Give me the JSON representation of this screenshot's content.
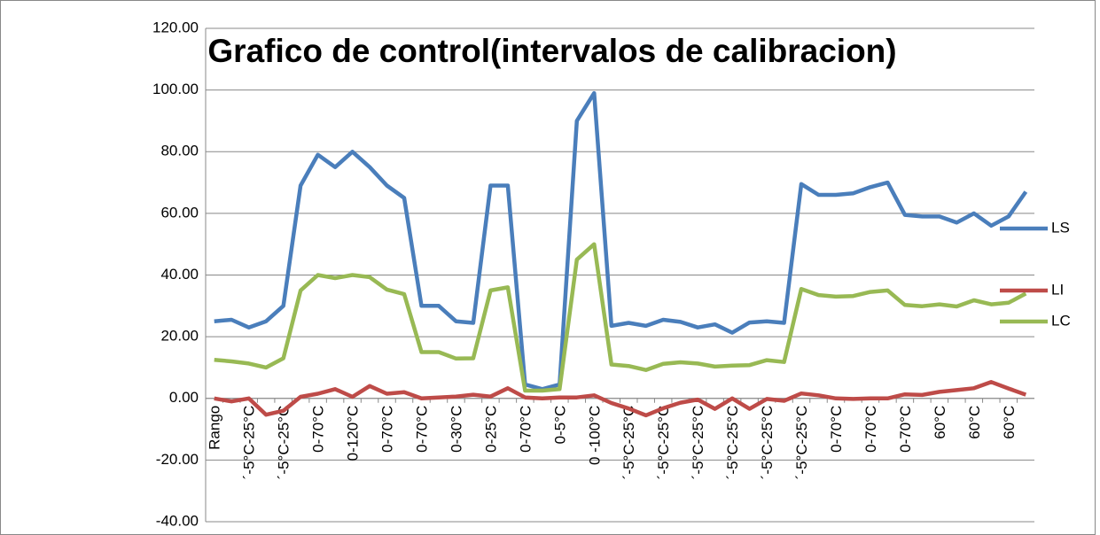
{
  "chart_data": {
    "type": "line",
    "title": "Grafico de control(intervalos de calibracion)",
    "categories": [
      "Rango",
      null,
      "´-5°C-25°C",
      null,
      "´-5°C-25°C",
      null,
      "0-70°C",
      null,
      "0-120°C",
      null,
      "0-70°C",
      null,
      "0-70°C",
      null,
      "0-30°C",
      null,
      "0-25°C",
      null,
      "0-70°C",
      null,
      "0-5°C",
      null,
      "0 -100°C",
      null,
      "´-5°C-25°C",
      null,
      "´-5°C-25°C",
      null,
      "´-5°C-25°C",
      null,
      "´-5°C-25°C",
      null,
      "´-5°C-25°C",
      null,
      "´-5°C-25°C",
      null,
      "0-70°C",
      null,
      "0-70°C",
      null,
      "0-70°C",
      null,
      "60°C",
      null,
      "60°C",
      null,
      "60°C",
      null
    ],
    "series": [
      {
        "name": "LS",
        "color": "#4a7ebb",
        "values": [
          25,
          25.5,
          23,
          25,
          30,
          69,
          79,
          75,
          80,
          75,
          69,
          65,
          30,
          30,
          25,
          24.5,
          69,
          69,
          4.5,
          3,
          4.5,
          90,
          99,
          23.5,
          24.5,
          23.5,
          25.5,
          24.8,
          23,
          24,
          21.3,
          24.6,
          25,
          24.5,
          69.5,
          66,
          66,
          66.5,
          68.5,
          70,
          59.5,
          59,
          59,
          57,
          60,
          56,
          59,
          67
        ]
      },
      {
        "name": "LI",
        "color": "#be4b48",
        "values": [
          0,
          -1,
          0,
          -5.3,
          -4,
          0.5,
          1.5,
          3,
          0.5,
          4,
          1.5,
          2,
          0,
          0.3,
          0.6,
          1.2,
          0.6,
          3.3,
          0.3,
          0,
          0.3,
          0.3,
          1,
          -1.5,
          -3.3,
          -5.5,
          -3.2,
          -1.4,
          -0.4,
          -3.4,
          0,
          -3.4,
          -0.2,
          -0.8,
          1.6,
          1,
          0,
          -0.2,
          0,
          0,
          1.3,
          1.1,
          2.1,
          2.7,
          3.3,
          5.3,
          3.2,
          1.2
        ]
      },
      {
        "name": "LC",
        "color": "#98b954",
        "values": [
          12.5,
          12,
          11.3,
          10,
          13,
          35,
          40,
          39,
          40,
          39.3,
          35.3,
          33.8,
          15,
          15,
          12.9,
          13,
          35,
          36,
          2.5,
          2.5,
          3,
          45,
          50,
          11,
          10.5,
          9.2,
          11.2,
          11.7,
          11.3,
          10.3,
          10.6,
          10.8,
          12.4,
          11.8,
          35.5,
          33.5,
          33,
          33.2,
          34.5,
          35,
          30.3,
          29.9,
          30.5,
          29.8,
          31.8,
          30.5,
          31,
          34
        ]
      }
    ],
    "ylim": [
      -40,
      120
    ],
    "yticks": [
      {
        "value": -40,
        "label": "-40.00"
      },
      {
        "value": -20,
        "label": "-20.00"
      },
      {
        "value": 0,
        "label": "0.00"
      },
      {
        "value": 20,
        "label": "20.00"
      },
      {
        "value": 40,
        "label": "40.00"
      },
      {
        "value": 60,
        "label": "60.00"
      },
      {
        "value": 80,
        "label": "80.00"
      },
      {
        "value": 100,
        "label": "100.00"
      },
      {
        "value": 120,
        "label": "120.00"
      }
    ],
    "grid": true,
    "legend": "right"
  }
}
